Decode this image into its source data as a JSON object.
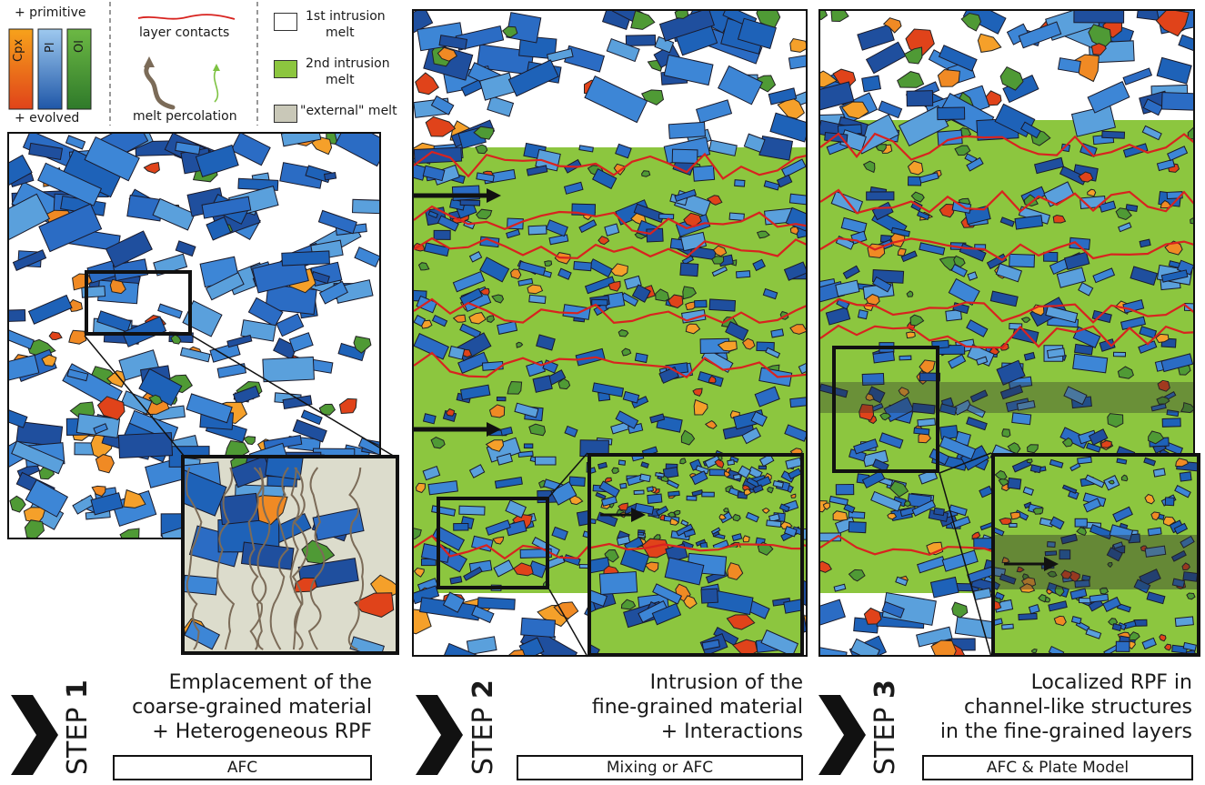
{
  "legend": {
    "mineral_scale": {
      "top_label": "+ primitive",
      "bottom_label": "+ evolved",
      "minerals": [
        {
          "label": "Cpx",
          "color_top": "#f7a21b",
          "color_bottom": "#e0431a"
        },
        {
          "label": "Pl",
          "color_top": "#9ec9ef",
          "color_bottom": "#1f57a8"
        },
        {
          "label": "Ol",
          "color_top": "#5aa43a",
          "color_bottom": "#2f7a2a"
        }
      ]
    },
    "layer_contacts": {
      "label": "layer contacts",
      "color": "#d8231f"
    },
    "melt_percolation": {
      "label": "melt percolation",
      "colors": [
        "#7b6b58",
        "#7dc242"
      ]
    },
    "melts": [
      {
        "label_line1": "1st intrusion",
        "label_line2": "melt",
        "color": "#ffffff"
      },
      {
        "label_line1": "2nd intrusion",
        "label_line2": "melt",
        "color": "#8cc63f"
      },
      {
        "label_line1": "\"external\" melt",
        "label_line2": "",
        "color": "#c9c8b8"
      }
    ]
  },
  "steps": [
    {
      "prefix": "STEP ",
      "number": "1",
      "desc_lines": [
        "Emplacement of the",
        "coarse-grained material",
        "+ Heterogeneous RPF"
      ],
      "model": "AFC"
    },
    {
      "prefix": "STEP ",
      "number": "2",
      "desc_lines": [
        "Intrusion of the",
        "fine-grained material",
        "+ Interactions"
      ],
      "model": "Mixing or AFC"
    },
    {
      "prefix": "STEP ",
      "number": "3",
      "desc_lines": [
        "Localized RPF in",
        "channel-like structures",
        "in the fine-grained layers"
      ],
      "model": "AFC & Plate Model"
    }
  ],
  "colors": {
    "cpx": "#f08a24",
    "cpx_dark": "#e0431a",
    "pl_light": "#5aa0dc",
    "pl_mid": "#2b6cc4",
    "pl_dark": "#1f4f9e",
    "ol": "#4f9a35",
    "green_melt": "#8cc63f",
    "red_contact": "#d8231f",
    "external_melt": "#c9c8b8"
  }
}
